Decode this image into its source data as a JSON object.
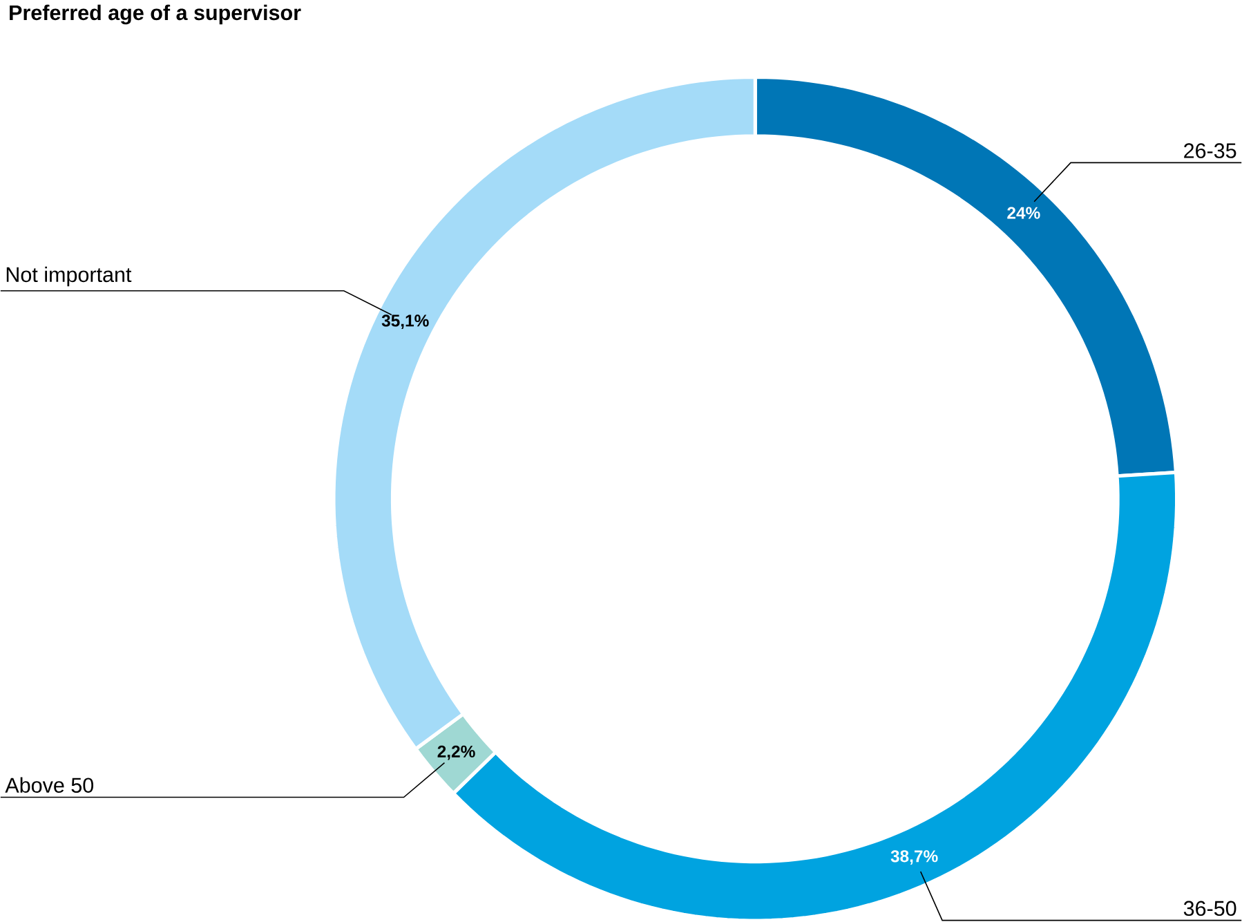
{
  "chart_data": {
    "type": "donut",
    "title": "Preferred age of a supervisor",
    "categories": [
      "26-35",
      "36-50",
      "Above 50",
      "Not important"
    ],
    "values": [
      24,
      38.7,
      2.2,
      35.1
    ],
    "colors": [
      "#0076b6",
      "#00a3e0",
      "#9fd8d3",
      "#a4dbf8"
    ],
    "value_labels": [
      "24%",
      "38,7%",
      "2,2%",
      "35,1%"
    ]
  }
}
